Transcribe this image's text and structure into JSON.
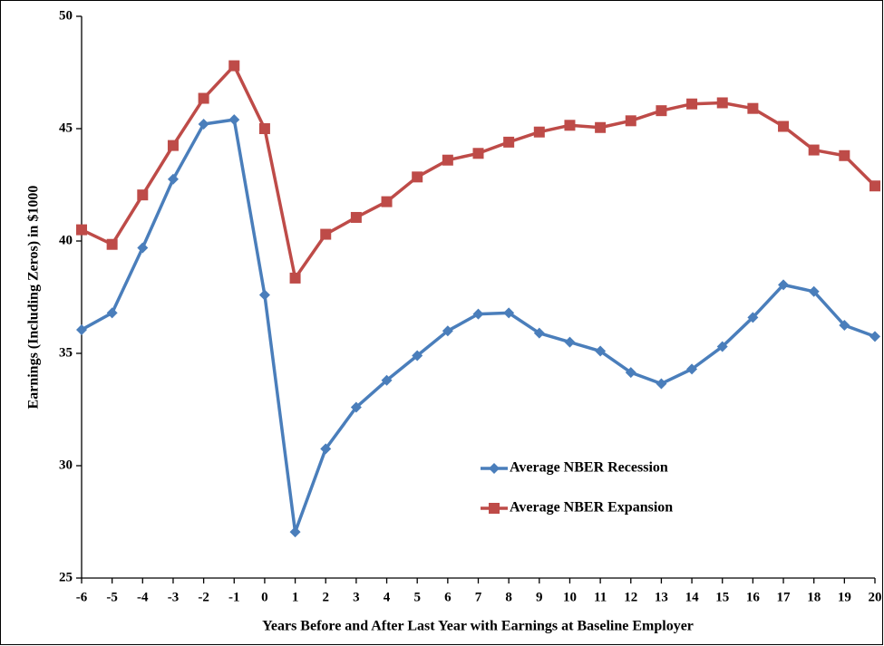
{
  "chart_data": {
    "type": "line",
    "x_label": "Years Before and After Last Year with Earnings at Baseline Employer",
    "y_label": "Earnings (Including Zeros) in $1000",
    "x": [
      -6,
      -5,
      -4,
      -3,
      -2,
      -1,
      0,
      1,
      2,
      3,
      4,
      5,
      6,
      7,
      8,
      9,
      10,
      11,
      12,
      13,
      14,
      15,
      16,
      17,
      18,
      19,
      20
    ],
    "series": [
      {
        "name": "Average NBER Recession",
        "color": "#4a7ebb",
        "marker": "diamond",
        "values": [
          36.05,
          36.8,
          39.7,
          42.75,
          45.2,
          45.4,
          37.6,
          27.05,
          30.75,
          32.6,
          33.8,
          34.9,
          36.0,
          36.75,
          36.8,
          35.9,
          35.5,
          35.1,
          34.15,
          33.65,
          34.3,
          35.3,
          36.6,
          38.05,
          37.75,
          36.25,
          35.75
        ]
      },
      {
        "name": "Average NBER Expansion",
        "color": "#be4b48",
        "marker": "square",
        "values": [
          40.5,
          39.85,
          42.05,
          44.25,
          46.35,
          47.8,
          45.0,
          38.35,
          40.3,
          41.05,
          41.75,
          42.85,
          43.6,
          43.9,
          44.4,
          44.85,
          45.15,
          45.05,
          45.35,
          45.8,
          46.1,
          46.15,
          45.9,
          45.1,
          44.05,
          43.8,
          42.45
        ]
      }
    ],
    "xlim": [
      -6,
      20
    ],
    "xticks": [
      -6,
      -5,
      -4,
      -3,
      -2,
      -1,
      0,
      1,
      2,
      3,
      4,
      5,
      6,
      7,
      8,
      9,
      10,
      11,
      12,
      13,
      14,
      15,
      16,
      17,
      18,
      19,
      20
    ],
    "ylim": [
      25,
      50
    ],
    "yticks": [
      25,
      30,
      35,
      40,
      45,
      50
    ],
    "grid": false,
    "legend": "lower-center"
  }
}
